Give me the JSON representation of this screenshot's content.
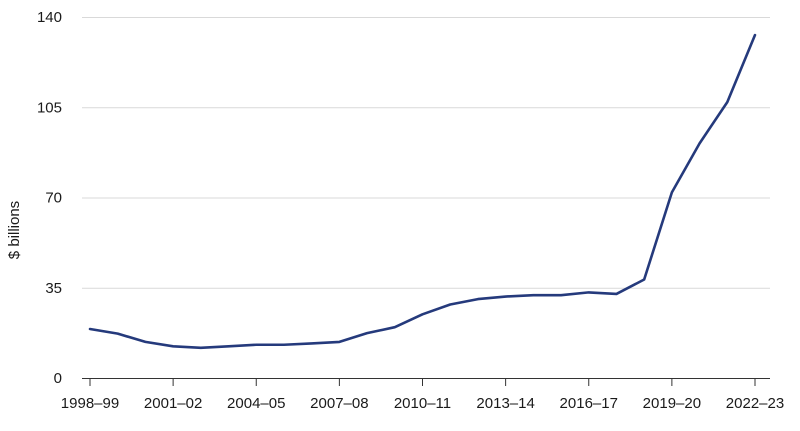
{
  "chart_data": {
    "type": "line",
    "title": "",
    "xlabel": "",
    "ylabel": "$ billions",
    "ylim": [
      0,
      140
    ],
    "yticks": [
      0,
      35,
      70,
      105,
      140
    ],
    "grid": "horizontal",
    "legend": "none",
    "x": [
      "1998–99",
      "1999–00",
      "2000–01",
      "2001–02",
      "2002–03",
      "2003–04",
      "2004–05",
      "2005–06",
      "2006–07",
      "2007–08",
      "2008–09",
      "2009–10",
      "2010–11",
      "2011–12",
      "2012–13",
      "2013–14",
      "2014–15",
      "2015–16",
      "2016–17",
      "2017–18",
      "2018–19",
      "2019–20",
      "2020–21",
      "2021–22",
      "2022–23"
    ],
    "xtick_labels": [
      "1998–99",
      "2001–02",
      "2004–05",
      "2007–08",
      "2010–11",
      "2013–14",
      "2016–17",
      "2019–20",
      "2022–23"
    ],
    "series": [
      {
        "color": "#253a7c",
        "values": [
          19.0,
          17.2,
          14.0,
          12.3,
          11.7,
          12.3,
          12.9,
          12.9,
          13.4,
          14.0,
          17.4,
          19.7,
          24.7,
          28.5,
          30.6,
          31.6,
          32.1,
          32.1,
          33.2,
          32.6,
          38.2,
          72.0,
          91.0,
          107.0,
          133.0
        ]
      }
    ]
  }
}
